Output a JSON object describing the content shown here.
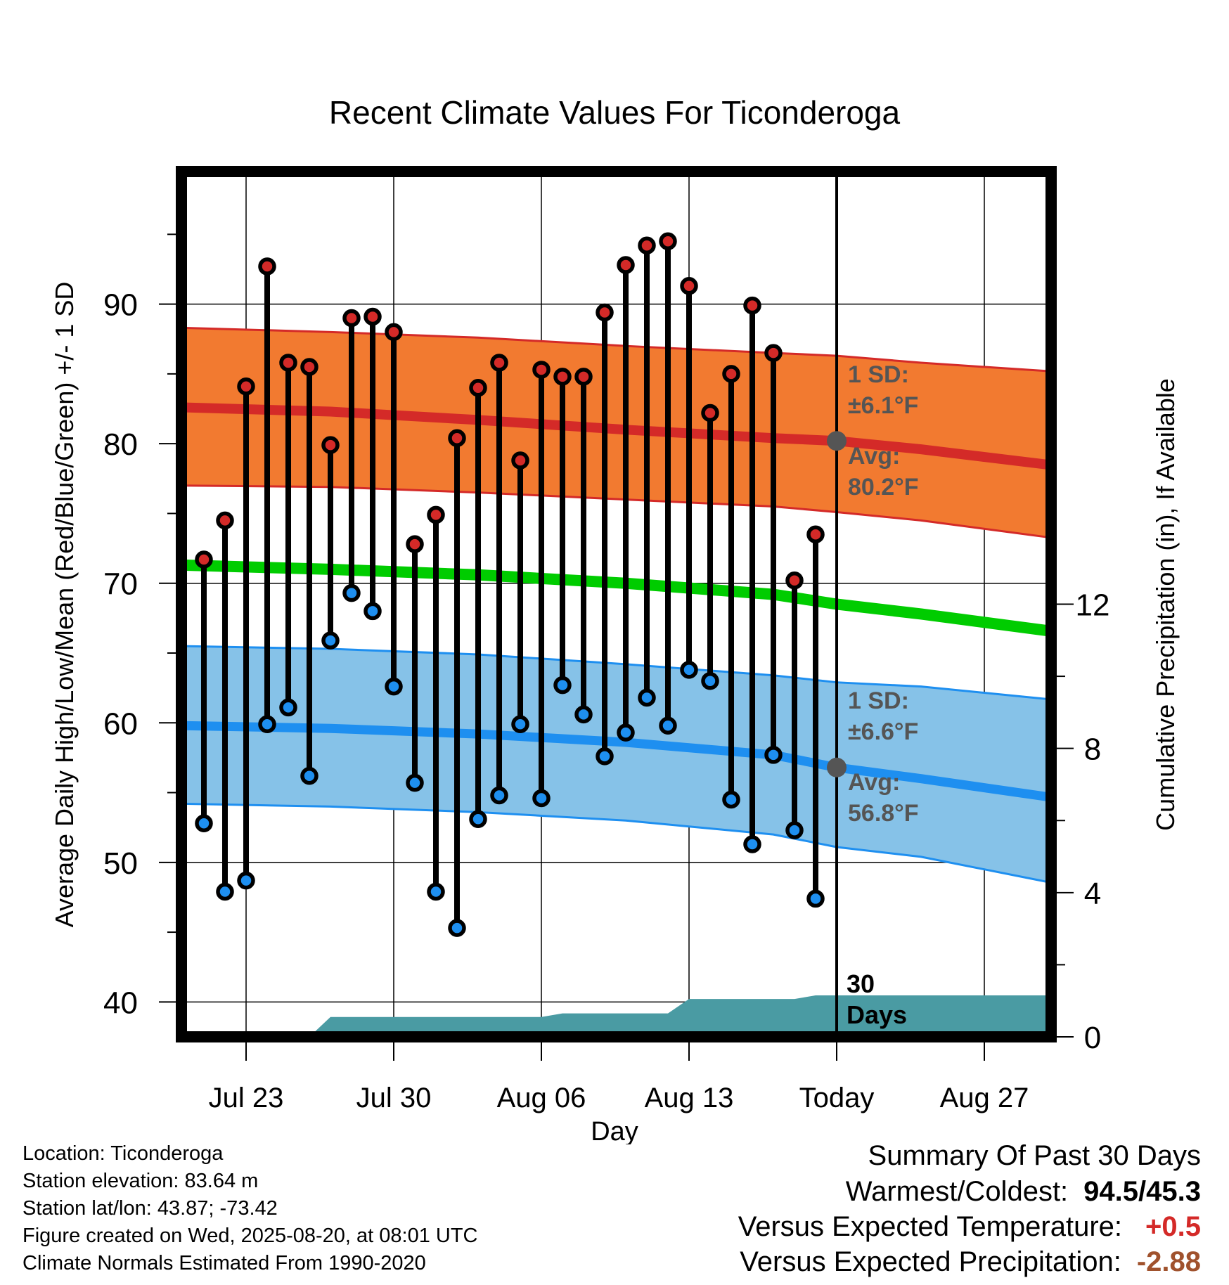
{
  "chart_data": {
    "type": "line",
    "title": "Recent Climate Values For Ticonderoga",
    "xlabel": "Day",
    "ylabel": "Average Daily High/Low/Mean (Red/Blue/Green) +/- 1 SD",
    "y2label": "Cumulative Precipitation (in), If Available",
    "ylim": [
      37.5,
      99.5
    ],
    "y2lim": [
      0,
      24
    ],
    "x_tick_labels": [
      "Jul 23",
      "Jul 30",
      "Aug 06",
      "Aug 13",
      "Today",
      "Aug 27"
    ],
    "y_ticks": [
      40,
      50,
      60,
      70,
      80,
      90
    ],
    "y2_ticks": [
      0,
      4,
      8,
      12
    ],
    "today_label": "30\nDays",
    "days": [
      "2025-07-21",
      "2025-07-22",
      "2025-07-23",
      "2025-07-24",
      "2025-07-25",
      "2025-07-26",
      "2025-07-27",
      "2025-07-28",
      "2025-07-29",
      "2025-07-30",
      "2025-07-31",
      "2025-08-01",
      "2025-08-02",
      "2025-08-03",
      "2025-08-04",
      "2025-08-05",
      "2025-08-06",
      "2025-08-07",
      "2025-08-08",
      "2025-08-09",
      "2025-08-10",
      "2025-08-11",
      "2025-08-12",
      "2025-08-13",
      "2025-08-14",
      "2025-08-15",
      "2025-08-16",
      "2025-08-17",
      "2025-08-18",
      "2025-08-19"
    ],
    "highs": [
      71.7,
      74.5,
      84.1,
      92.7,
      85.8,
      85.5,
      79.9,
      89.0,
      89.1,
      88.0,
      72.8,
      74.9,
      80.4,
      84.0,
      85.8,
      78.8,
      85.3,
      84.8,
      84.8,
      89.4,
      92.8,
      94.2,
      94.5,
      91.3,
      82.2,
      85.0,
      89.9,
      86.5,
      70.2,
      73.5
    ],
    "lows": [
      52.8,
      47.9,
      48.7,
      59.9,
      61.1,
      56.2,
      65.9,
      69.3,
      68.0,
      62.6,
      55.7,
      47.9,
      45.3,
      53.1,
      54.8,
      59.9,
      54.6,
      62.7,
      60.6,
      57.6,
      59.3,
      61.8,
      59.8,
      63.8,
      63.0,
      54.5,
      51.3,
      57.7,
      52.3,
      47.4
    ],
    "normals_days": [
      "2025-07-20",
      "2025-07-27",
      "2025-08-03",
      "2025-08-10",
      "2025-08-17",
      "2025-08-20",
      "2025-08-24",
      "2025-08-30"
    ],
    "normal_high": [
      82.6,
      82.3,
      81.7,
      81.0,
      80.4,
      80.2,
      79.6,
      78.5
    ],
    "high_upper": [
      88.3,
      88.0,
      87.6,
      87.0,
      86.5,
      86.3,
      85.8,
      85.2
    ],
    "high_lower": [
      77.0,
      76.9,
      76.5,
      76.0,
      75.5,
      75.1,
      74.5,
      73.3
    ],
    "normal_mean": [
      71.3,
      71.0,
      70.6,
      70.0,
      69.2,
      68.5,
      67.8,
      66.6
    ],
    "normal_low": [
      59.8,
      59.6,
      59.2,
      58.6,
      57.7,
      56.8,
      56.0,
      54.7
    ],
    "low_upper": [
      65.5,
      65.3,
      64.9,
      64.2,
      63.4,
      62.9,
      62.6,
      61.7
    ],
    "low_lower": [
      54.2,
      54.0,
      53.6,
      53.0,
      52.0,
      51.1,
      50.4,
      48.6
    ],
    "precip_days": [
      "2025-07-20",
      "2025-07-26",
      "2025-07-27",
      "2025-08-06",
      "2025-08-07",
      "2025-08-12",
      "2025-08-13",
      "2025-08-18",
      "2025-08-19",
      "2025-08-30"
    ],
    "precip_cum": [
      0.0,
      0.0,
      0.55,
      0.55,
      0.65,
      0.65,
      1.05,
      1.05,
      1.15,
      1.15
    ],
    "high_sd_label": "1 SD:",
    "high_sd_value": "±6.1°F",
    "high_avg_label": "Avg:",
    "high_avg_value": "80.2°F",
    "low_sd_label": "1 SD:",
    "low_sd_value": "±6.6°F",
    "low_avg_label": "Avg:",
    "low_avg_value": "56.8°F",
    "colors": {
      "high_band": "#f27a30",
      "high_line": "#d42a28",
      "mean_line": "#00cc00",
      "low_band": "#86c2e8",
      "low_line": "#1e8ff0",
      "precip": "#4a9ba3",
      "high_dot": "#d42a28",
      "low_dot": "#1e8ff0",
      "annotation": "#555555"
    }
  },
  "footer": {
    "location": "Location: Ticonderoga",
    "elevation": "Station elevation: 83.64 m",
    "latlon": "Station lat/lon: 43.87; -73.42",
    "created": "Figure created on Wed, 2025-08-20, at 08:01 UTC",
    "normals": "Climate Normals Estimated From 1990-2020"
  },
  "summary": {
    "heading": "Summary Of Past 30 Days",
    "warmest_label": "Warmest/Coldest:",
    "warmest_value": "94.5/45.3",
    "temp_label": "Versus Expected Temperature:",
    "temp_value": "+0.5",
    "temp_color": "#d42a28",
    "precip_label": "Versus Expected Precipitation:",
    "precip_value": "-2.88",
    "precip_color": "#a0522d"
  }
}
